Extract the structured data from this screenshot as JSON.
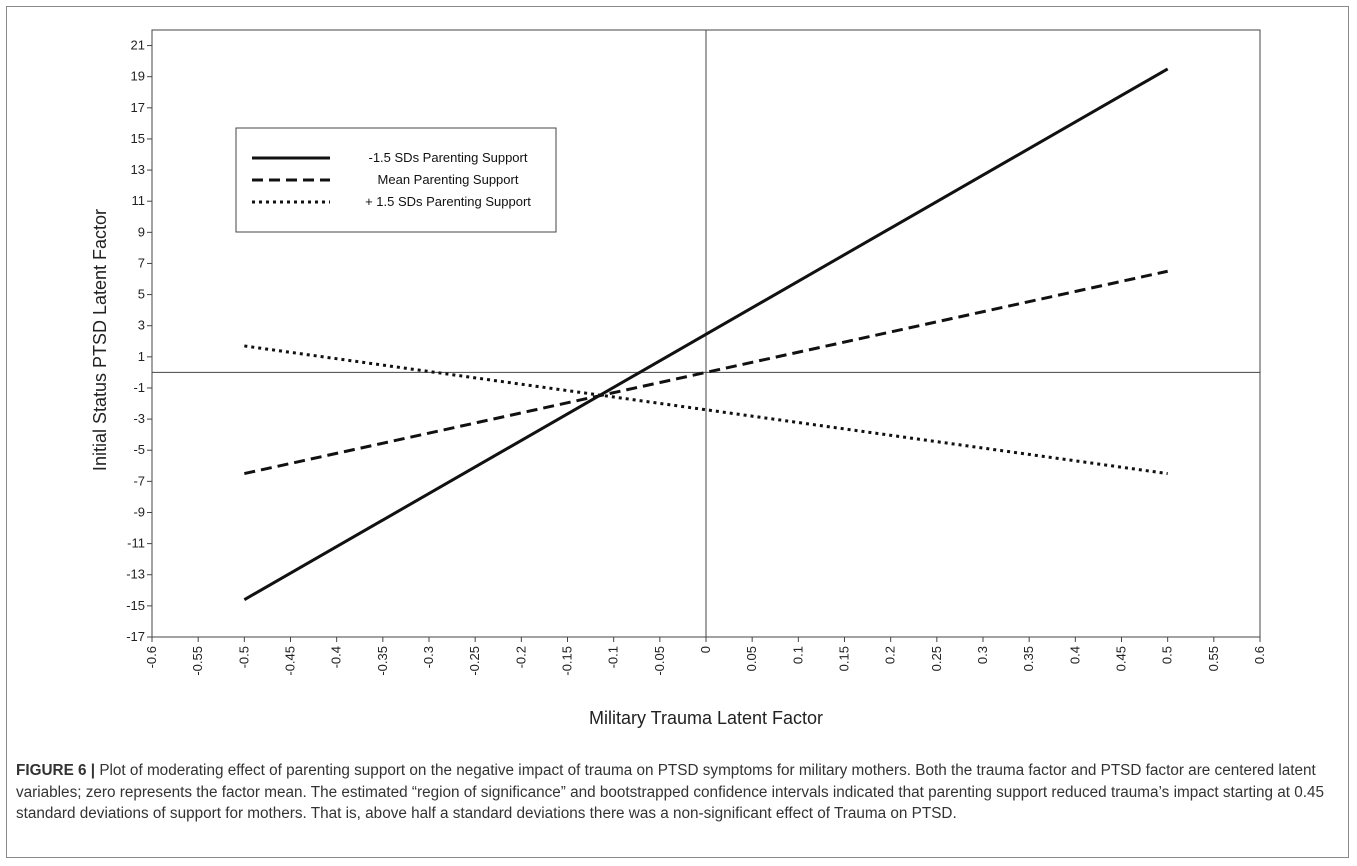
{
  "chart_data": {
    "type": "line",
    "title": "",
    "xlabel": "Military Trauma Latent Factor",
    "ylabel": "Initial Status PTSD Latent Factor",
    "xlim": [
      -0.6,
      0.6
    ],
    "ylim": [
      -17,
      22
    ],
    "x_ticks": [
      "-0.6",
      "-0.55",
      "-0.5",
      "-0.45",
      "-0.4",
      "-0.35",
      "-0.3",
      "-0.25",
      "-0.2",
      "-0.15",
      "-0.1",
      "-0.05",
      "0",
      "0.05",
      "0.1",
      "0.15",
      "0.2",
      "0.25",
      "0.3",
      "0.35",
      "0.4",
      "0.45",
      "0.5",
      "0.55",
      "0.6"
    ],
    "y_ticks": [
      "21",
      "19",
      "17",
      "15",
      "13",
      "11",
      "9",
      "7",
      "5",
      "3",
      "1",
      "-1",
      "-3",
      "-5",
      "-7",
      "-9",
      "-11",
      "-13",
      "-15",
      "-17"
    ],
    "grid": false,
    "legend_position": "top-left",
    "series": [
      {
        "name": "-1.5 SDs Parenting Support",
        "style": "solid",
        "x": [
          -0.5,
          0.5
        ],
        "y": [
          -14.6,
          19.5
        ]
      },
      {
        "name": "Mean Parenting Support",
        "style": "dashed",
        "x": [
          -0.5,
          0.5
        ],
        "y": [
          -6.5,
          6.5
        ]
      },
      {
        "name": "+ 1.5 SDs Parenting Support",
        "style": "dotted",
        "x": [
          -0.5,
          0.5
        ],
        "y": [
          1.7,
          -6.5
        ]
      }
    ]
  },
  "caption": {
    "label": "FIGURE 6 |",
    "text": "Plot of moderating effect of parenting support on the negative impact of trauma on PTSD symptoms for military mothers. Both the trauma factor and PTSD factor are centered latent variables; zero represents the factor mean. The estimated “region of significance” and bootstrapped confidence intervals indicated that parenting support reduced trauma’s impact starting at 0.45 standard deviations of support for mothers. That is, above half a standard deviations there was a non-significant effect of Trauma on PTSD."
  },
  "colors": {
    "line": "#111111",
    "axis": "#444444",
    "frame": "#8a8a8a",
    "caption_text": "#333333"
  }
}
